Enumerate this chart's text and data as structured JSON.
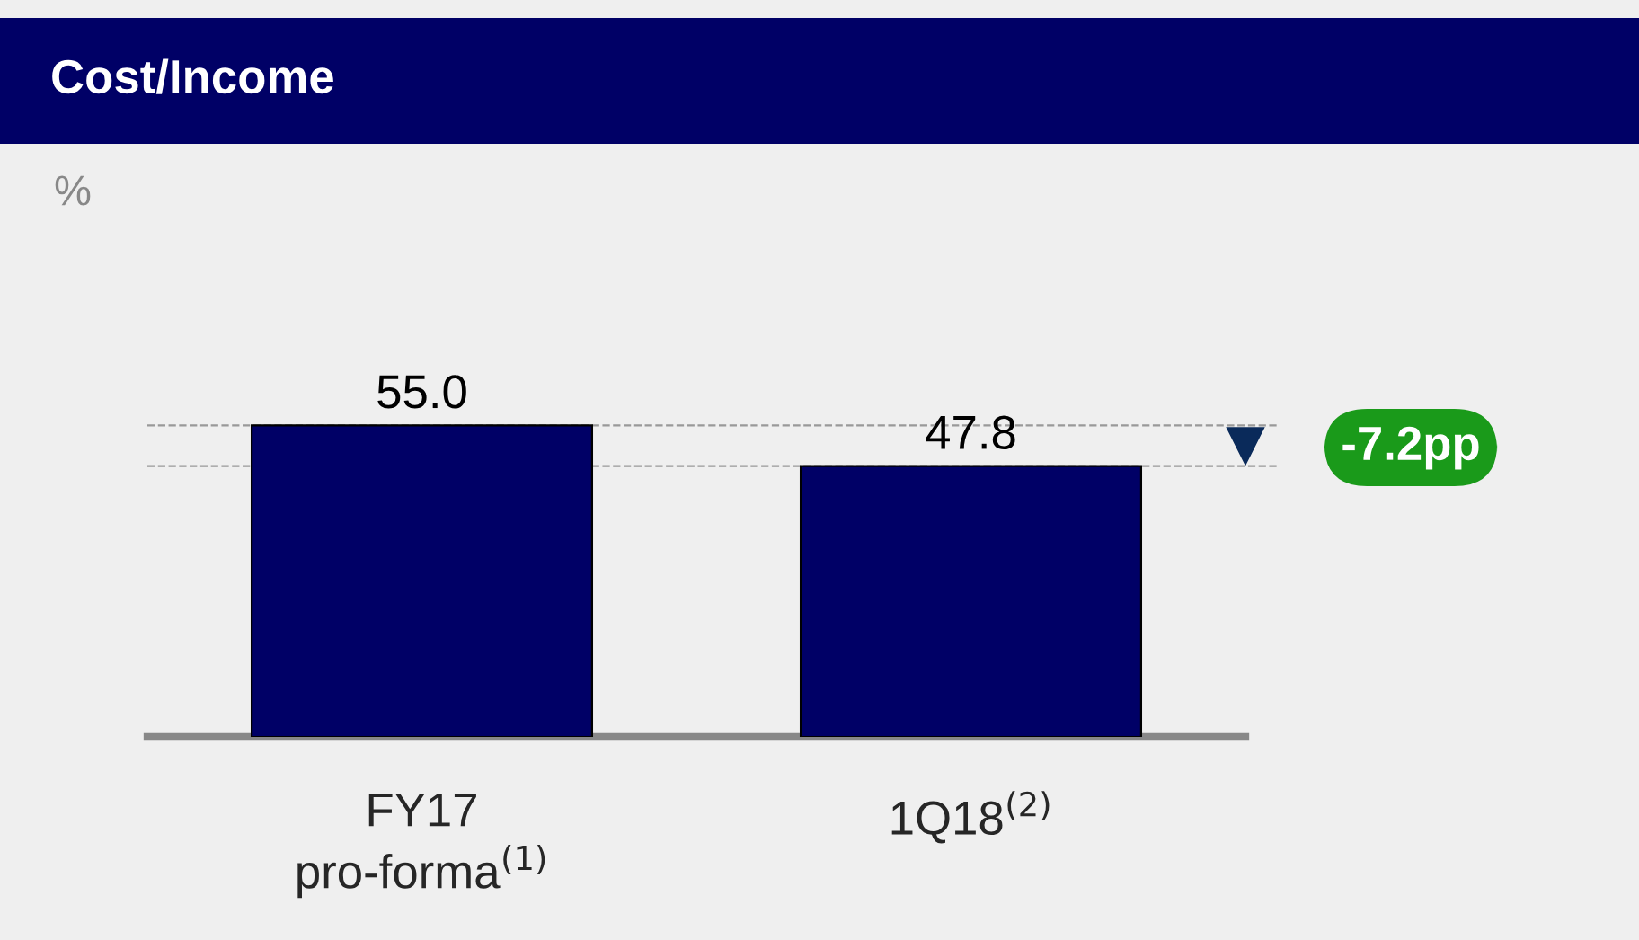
{
  "chart_data": {
    "type": "bar",
    "title": "Cost/Income",
    "categories": [
      "FY17\npro-forma$^{(1)}$",
      "1Q18$^{(2)}$"
    ],
    "values": [
      55.0,
      47.8
    ],
    "color": "#000066",
    "value_labels": [
      "55.0",
      "47.8"
    ],
    "ref_lines": [
      {
        "axis": "y",
        "value": 55.0,
        "color": "#999999",
        "line_style": "dashed"
      },
      {
        "axis": "y",
        "value": 47.8,
        "color": "#999999",
        "line_style": "dashed"
      }
    ],
    "annotations": [
      "%",
      "-7.2pp"
    ]
  }
}
